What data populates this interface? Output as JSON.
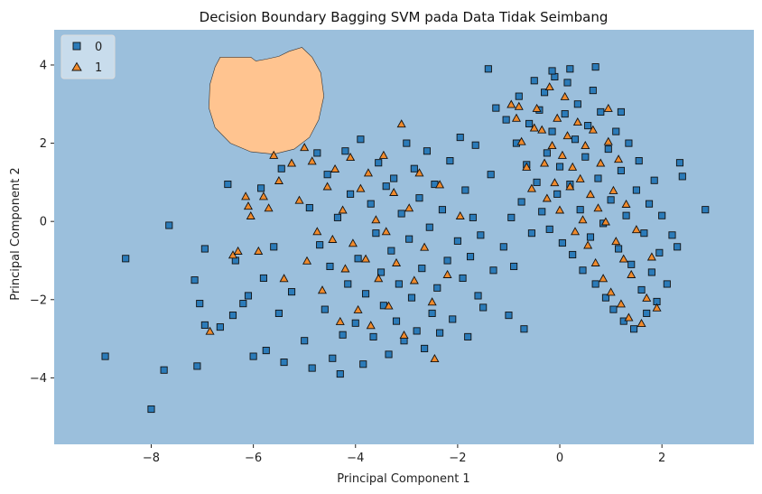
{
  "chart_data": {
    "type": "scatter",
    "title": "Decision Boundary Bagging SVM pada Data Tidak Seimbang",
    "xlabel": "Principal Component 1",
    "ylabel": "Principal Component 2",
    "xlim": [
      -9.9,
      3.8
    ],
    "ylim": [
      -5.7,
      4.9
    ],
    "xticks": [
      -8,
      -6,
      -4,
      -2,
      0,
      2
    ],
    "yticks": [
      -4,
      -2,
      0,
      2,
      4
    ],
    "xtick_labels": [
      "−8",
      "−6",
      "−4",
      "−2",
      "0",
      "2"
    ],
    "ytick_labels": [
      "−4",
      "−2",
      "0",
      "2",
      "4"
    ],
    "grid": false,
    "legend_position": "top-left",
    "decision_regions": [
      {
        "class": "0",
        "color": "#9bbfdc",
        "extent": "background"
      },
      {
        "class": "1",
        "color": "#ffc490",
        "boundary": [
          [
            -6.65,
            4.2
          ],
          [
            -6.05,
            4.2
          ],
          [
            -5.95,
            4.1
          ],
          [
            -5.75,
            4.15
          ],
          [
            -5.5,
            4.22
          ],
          [
            -5.3,
            4.35
          ],
          [
            -5.05,
            4.45
          ],
          [
            -4.85,
            4.2
          ],
          [
            -4.68,
            3.8
          ],
          [
            -4.62,
            3.2
          ],
          [
            -4.72,
            2.6
          ],
          [
            -4.9,
            2.15
          ],
          [
            -5.2,
            1.85
          ],
          [
            -5.6,
            1.72
          ],
          [
            -6.05,
            1.78
          ],
          [
            -6.45,
            2.0
          ],
          [
            -6.75,
            2.4
          ],
          [
            -6.87,
            2.9
          ],
          [
            -6.85,
            3.5
          ],
          [
            -6.75,
            3.95
          ]
        ]
      }
    ],
    "series": [
      {
        "name": "0",
        "marker": "square",
        "color": "#2b7bb9",
        "edge": "#111111",
        "points": [
          [
            -8.9,
            -3.45
          ],
          [
            -8.5,
            -0.95
          ],
          [
            -8.0,
            -4.8
          ],
          [
            -7.75,
            -3.8
          ],
          [
            -7.65,
            -0.1
          ],
          [
            -7.15,
            -1.5
          ],
          [
            -7.1,
            -3.7
          ],
          [
            -7.05,
            -2.1
          ],
          [
            -6.95,
            -0.7
          ],
          [
            -6.95,
            -2.65
          ],
          [
            -6.65,
            -2.7
          ],
          [
            -6.5,
            0.95
          ],
          [
            -6.4,
            -2.4
          ],
          [
            -6.35,
            -1.0
          ],
          [
            -6.2,
            -2.1
          ],
          [
            -6.1,
            -1.9
          ],
          [
            -6.0,
            -3.45
          ],
          [
            -5.85,
            0.85
          ],
          [
            -5.8,
            -1.45
          ],
          [
            -5.75,
            -3.3
          ],
          [
            -5.6,
            -0.65
          ],
          [
            -5.5,
            -2.35
          ],
          [
            -5.45,
            1.35
          ],
          [
            -5.4,
            -3.6
          ],
          [
            -5.25,
            -1.8
          ],
          [
            -5.0,
            -3.05
          ],
          [
            -4.9,
            0.35
          ],
          [
            -4.85,
            -3.75
          ],
          [
            -4.75,
            1.75
          ],
          [
            -4.7,
            -0.6
          ],
          [
            -4.6,
            -2.25
          ],
          [
            -4.55,
            1.2
          ],
          [
            -4.5,
            -1.15
          ],
          [
            -4.45,
            -3.5
          ],
          [
            -4.35,
            0.1
          ],
          [
            -4.3,
            -3.9
          ],
          [
            -4.25,
            -2.9
          ],
          [
            -4.2,
            1.8
          ],
          [
            -4.15,
            -1.6
          ],
          [
            -4.1,
            0.7
          ],
          [
            -4.0,
            -2.6
          ],
          [
            -3.95,
            -0.95
          ],
          [
            -3.9,
            2.1
          ],
          [
            -3.85,
            -3.65
          ],
          [
            -3.8,
            -1.85
          ],
          [
            -3.7,
            0.45
          ],
          [
            -3.65,
            -2.95
          ],
          [
            -3.6,
            -0.3
          ],
          [
            -3.55,
            1.5
          ],
          [
            -3.5,
            -1.3
          ],
          [
            -3.45,
            -2.15
          ],
          [
            -3.4,
            0.9
          ],
          [
            -3.35,
            -3.4
          ],
          [
            -3.3,
            -0.75
          ],
          [
            -3.25,
            1.1
          ],
          [
            -3.2,
            -2.55
          ],
          [
            -3.15,
            -1.6
          ],
          [
            -3.1,
            0.2
          ],
          [
            -3.05,
            -3.05
          ],
          [
            -3.0,
            2.0
          ],
          [
            -2.95,
            -0.45
          ],
          [
            -2.9,
            -1.95
          ],
          [
            -2.85,
            1.35
          ],
          [
            -2.8,
            -2.8
          ],
          [
            -2.75,
            0.6
          ],
          [
            -2.7,
            -1.2
          ],
          [
            -2.65,
            -3.25
          ],
          [
            -2.6,
            1.8
          ],
          [
            -2.55,
            -0.15
          ],
          [
            -2.5,
            -2.35
          ],
          [
            -2.45,
            0.95
          ],
          [
            -2.4,
            -1.7
          ],
          [
            -2.35,
            -2.85
          ],
          [
            -2.3,
            0.3
          ],
          [
            -2.2,
            -1.0
          ],
          [
            -2.15,
            1.55
          ],
          [
            -2.1,
            -2.5
          ],
          [
            -2.0,
            -0.5
          ],
          [
            -1.95,
            2.15
          ],
          [
            -1.9,
            -1.45
          ],
          [
            -1.85,
            0.8
          ],
          [
            -1.8,
            -2.95
          ],
          [
            -1.75,
            -0.9
          ],
          [
            -1.7,
            0.1
          ],
          [
            -1.65,
            1.95
          ],
          [
            -1.6,
            -1.9
          ],
          [
            -1.55,
            -0.35
          ],
          [
            -1.5,
            -2.2
          ],
          [
            -1.4,
            3.9
          ],
          [
            -1.35,
            1.2
          ],
          [
            -1.3,
            -1.25
          ],
          [
            -1.25,
            2.9
          ],
          [
            -1.1,
            -0.65
          ],
          [
            -1.05,
            2.6
          ],
          [
            -1.0,
            -2.4
          ],
          [
            -0.95,
            0.1
          ],
          [
            -0.9,
            -1.15
          ],
          [
            -0.85,
            2.0
          ],
          [
            -0.8,
            3.2
          ],
          [
            -0.75,
            0.5
          ],
          [
            -0.7,
            -2.75
          ],
          [
            -0.65,
            1.45
          ],
          [
            -0.6,
            2.5
          ],
          [
            -0.55,
            -0.3
          ],
          [
            -0.5,
            3.6
          ],
          [
            -0.45,
            1.0
          ],
          [
            -0.4,
            2.85
          ],
          [
            -0.35,
            0.25
          ],
          [
            -0.3,
            3.3
          ],
          [
            -0.25,
            1.75
          ],
          [
            -0.2,
            -0.2
          ],
          [
            -0.15,
            2.3
          ],
          [
            -0.1,
            3.7
          ],
          [
            -0.05,
            0.7
          ],
          [
            0.0,
            1.4
          ],
          [
            0.05,
            -0.55
          ],
          [
            0.1,
            2.75
          ],
          [
            0.15,
            3.55
          ],
          [
            0.2,
            0.95
          ],
          [
            0.25,
            -0.85
          ],
          [
            0.3,
            2.1
          ],
          [
            0.35,
            3.0
          ],
          [
            0.4,
            0.3
          ],
          [
            0.45,
            -1.25
          ],
          [
            0.5,
            1.65
          ],
          [
            0.55,
            2.45
          ],
          [
            0.6,
            -0.4
          ],
          [
            0.65,
            3.35
          ],
          [
            0.7,
            -1.6
          ],
          [
            0.75,
            1.1
          ],
          [
            0.8,
            2.8
          ],
          [
            0.85,
            -0.05
          ],
          [
            0.9,
            -1.95
          ],
          [
            0.95,
            1.85
          ],
          [
            1.0,
            0.55
          ],
          [
            1.05,
            -2.25
          ],
          [
            1.1,
            2.3
          ],
          [
            1.15,
            -0.7
          ],
          [
            1.2,
            1.3
          ],
          [
            1.25,
            -2.55
          ],
          [
            1.3,
            0.15
          ],
          [
            1.35,
            2.0
          ],
          [
            1.4,
            -1.1
          ],
          [
            1.45,
            -2.75
          ],
          [
            1.5,
            0.8
          ],
          [
            1.55,
            1.55
          ],
          [
            1.6,
            -1.75
          ],
          [
            1.65,
            -0.3
          ],
          [
            1.7,
            -2.35
          ],
          [
            1.75,
            0.45
          ],
          [
            1.8,
            -1.3
          ],
          [
            1.85,
            1.05
          ],
          [
            1.9,
            -2.05
          ],
          [
            1.95,
            -0.8
          ],
          [
            2.0,
            0.15
          ],
          [
            2.1,
            -1.6
          ],
          [
            2.2,
            -0.35
          ],
          [
            2.3,
            -0.65
          ],
          [
            2.35,
            1.5
          ],
          [
            2.4,
            1.15
          ],
          [
            2.85,
            0.3
          ],
          [
            0.7,
            3.95
          ],
          [
            0.2,
            3.9
          ],
          [
            -0.15,
            3.85
          ],
          [
            1.2,
            2.8
          ]
        ]
      },
      {
        "name": "1",
        "marker": "triangle",
        "color": "#f08a2c",
        "edge": "#111111",
        "points": [
          [
            -6.85,
            -2.8
          ],
          [
            -6.4,
            -0.85
          ],
          [
            -6.3,
            -0.75
          ],
          [
            -6.15,
            0.65
          ],
          [
            -6.1,
            0.4
          ],
          [
            -6.05,
            0.15
          ],
          [
            -5.9,
            -0.75
          ],
          [
            -5.8,
            0.65
          ],
          [
            -5.7,
            0.35
          ],
          [
            -5.6,
            1.7
          ],
          [
            -5.5,
            1.05
          ],
          [
            -5.4,
            -1.45
          ],
          [
            -5.25,
            1.5
          ],
          [
            -5.1,
            0.55
          ],
          [
            -5.0,
            1.9
          ],
          [
            -4.95,
            -1.0
          ],
          [
            -4.85,
            1.55
          ],
          [
            -4.75,
            -0.25
          ],
          [
            -4.65,
            -1.75
          ],
          [
            -4.55,
            0.9
          ],
          [
            -4.45,
            -0.45
          ],
          [
            -4.4,
            1.35
          ],
          [
            -4.3,
            -2.55
          ],
          [
            -4.25,
            0.3
          ],
          [
            -4.2,
            -1.2
          ],
          [
            -4.1,
            1.65
          ],
          [
            -4.05,
            -0.55
          ],
          [
            -3.95,
            -2.25
          ],
          [
            -3.9,
            0.85
          ],
          [
            -3.8,
            -0.95
          ],
          [
            -3.75,
            1.25
          ],
          [
            -3.7,
            -2.65
          ],
          [
            -3.6,
            0.05
          ],
          [
            -3.55,
            -1.45
          ],
          [
            -3.45,
            1.7
          ],
          [
            -3.4,
            -0.25
          ],
          [
            -3.35,
            -2.15
          ],
          [
            -3.25,
            0.75
          ],
          [
            -3.2,
            -1.05
          ],
          [
            -3.1,
            2.5
          ],
          [
            -3.05,
            -2.9
          ],
          [
            -2.95,
            0.35
          ],
          [
            -2.85,
            -1.5
          ],
          [
            -2.75,
            1.25
          ],
          [
            -2.65,
            -0.65
          ],
          [
            -2.5,
            -2.05
          ],
          [
            -2.45,
            -3.5
          ],
          [
            -2.35,
            0.95
          ],
          [
            -2.2,
            -1.35
          ],
          [
            -1.95,
            0.15
          ],
          [
            -0.95,
            3.0
          ],
          [
            -0.85,
            2.65
          ],
          [
            -0.75,
            2.05
          ],
          [
            -0.65,
            1.4
          ],
          [
            -0.55,
            0.85
          ],
          [
            -0.45,
            2.9
          ],
          [
            -0.35,
            2.35
          ],
          [
            -0.3,
            1.5
          ],
          [
            -0.25,
            0.6
          ],
          [
            -0.2,
            3.45
          ],
          [
            -0.15,
            1.95
          ],
          [
            -0.1,
            1.0
          ],
          [
            -0.05,
            2.65
          ],
          [
            0.0,
            0.3
          ],
          [
            0.05,
            1.7
          ],
          [
            0.1,
            3.2
          ],
          [
            0.15,
            2.2
          ],
          [
            0.2,
            0.9
          ],
          [
            0.25,
            1.4
          ],
          [
            0.3,
            -0.25
          ],
          [
            0.35,
            2.55
          ],
          [
            0.4,
            1.1
          ],
          [
            0.45,
            0.05
          ],
          [
            0.5,
            1.95
          ],
          [
            0.55,
            -0.6
          ],
          [
            0.6,
            0.7
          ],
          [
            0.65,
            2.35
          ],
          [
            0.7,
            -1.05
          ],
          [
            0.75,
            0.35
          ],
          [
            0.8,
            1.5
          ],
          [
            0.85,
            -1.45
          ],
          [
            0.9,
            0.0
          ],
          [
            0.95,
            2.05
          ],
          [
            1.0,
            -1.8
          ],
          [
            1.05,
            0.8
          ],
          [
            1.1,
            -0.5
          ],
          [
            1.15,
            1.6
          ],
          [
            1.2,
            -2.1
          ],
          [
            1.25,
            -0.95
          ],
          [
            1.3,
            0.45
          ],
          [
            1.35,
            -2.45
          ],
          [
            1.4,
            -1.35
          ],
          [
            1.5,
            -0.2
          ],
          [
            1.6,
            -2.6
          ],
          [
            1.7,
            -1.95
          ],
          [
            1.8,
            -0.9
          ],
          [
            1.9,
            -2.2
          ],
          [
            0.95,
            2.9
          ],
          [
            -0.8,
            2.95
          ],
          [
            -0.5,
            2.4
          ]
        ]
      }
    ]
  }
}
